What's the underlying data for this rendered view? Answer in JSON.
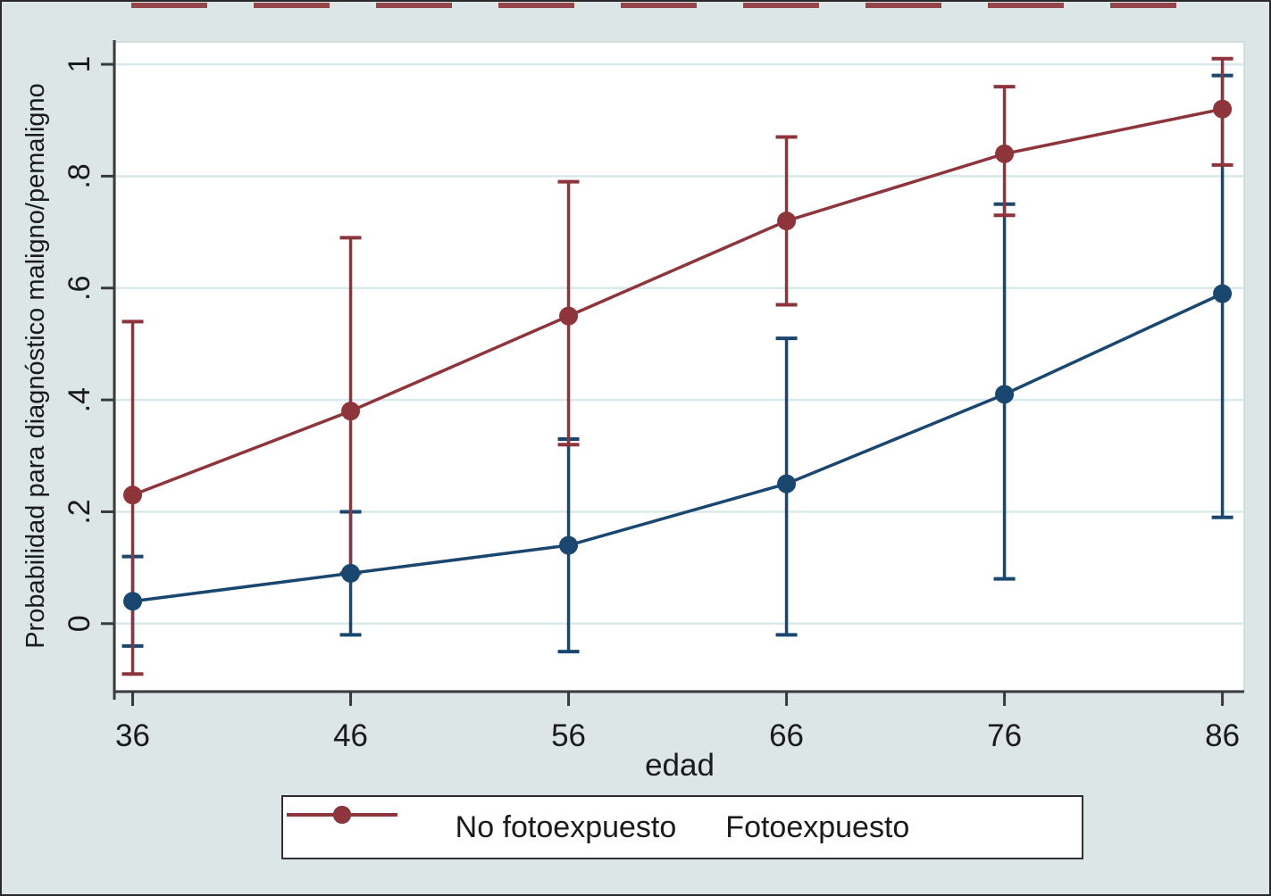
{
  "chart_data": {
    "type": "line",
    "title": "",
    "xlabel": "edad",
    "ylabel": "Probabilidad para diagnóstico maligno/pemaligno",
    "x": [
      36,
      46,
      56,
      66,
      76,
      86
    ],
    "xtick_labels": [
      "36",
      "46",
      "56",
      "66",
      "76",
      "86"
    ],
    "yticks": [
      0,
      0.2,
      0.4,
      0.6,
      0.8,
      1
    ],
    "ytick_labels": [
      "0",
      ".2",
      ".4",
      ".6",
      ".8",
      "1"
    ],
    "xlim": [
      35.2,
      87.0
    ],
    "ylim": [
      -0.12,
      1.04
    ],
    "grid": true,
    "legend_position": "bottom-center",
    "error_bars": true,
    "series": [
      {
        "name": "No fotoexpuesto",
        "color": "#1a476f",
        "values": [
          0.04,
          0.09,
          0.14,
          0.25,
          0.41,
          0.59
        ],
        "ci_low": [
          -0.04,
          -0.02,
          -0.05,
          -0.02,
          0.08,
          0.19
        ],
        "ci_high": [
          0.12,
          0.2,
          0.33,
          0.51,
          0.75,
          0.98
        ]
      },
      {
        "name": "Fotoexpuesto",
        "color": "#8e353b",
        "values": [
          0.23,
          0.38,
          0.55,
          0.72,
          0.84,
          0.92
        ],
        "ci_low": [
          -0.09,
          0.09,
          0.32,
          0.57,
          0.73,
          0.82
        ],
        "ci_high": [
          0.54,
          0.69,
          0.79,
          0.87,
          0.96,
          1.01
        ]
      }
    ],
    "colors": {
      "background": "#dde6e6",
      "plot_background": "#ffffff",
      "gridline": "#d9e8eb",
      "axis": "#3a3a3a",
      "text": "#1a1a1a"
    }
  }
}
